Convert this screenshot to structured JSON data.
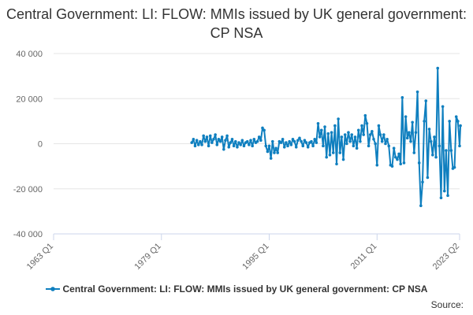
{
  "title": "Central Government: LI: FLOW: MMIs issued by UK general government: CP NSA",
  "source_label": "Source:",
  "chart_data": {
    "type": "line",
    "title": "Central Government: LI: FLOW: MMIs issued by UK general government: CP NSA",
    "xlabel": "",
    "ylabel": "",
    "x_tick_labels": [
      "1963 Q1",
      "1979 Q1",
      "1995 Q1",
      "2011 Q1",
      "2023 Q2"
    ],
    "y_tick_labels": [
      "40 000",
      "20 000",
      "0",
      "-20 000",
      "-40 000"
    ],
    "y_ticks": [
      40000,
      20000,
      0,
      -20000,
      -40000
    ],
    "ylim": [
      -40000,
      40000
    ],
    "grid": true,
    "legend_position": "bottom",
    "series": [
      {
        "name": "Central Government: LI: FLOW: MMIs issued by UK general government: CP NSA",
        "color": "#0f7fbf",
        "points": [
          [
            "1983 Q3",
            500
          ],
          [
            "1983 Q4",
            2000
          ],
          [
            "1984 Q1",
            -1000
          ],
          [
            "1984 Q2",
            1500
          ],
          [
            "1984 Q3",
            -500
          ],
          [
            "1984 Q4",
            1000
          ],
          [
            "1985 Q1",
            -500
          ],
          [
            "1985 Q2",
            3500
          ],
          [
            "1985 Q3",
            1000
          ],
          [
            "1985 Q4",
            3000
          ],
          [
            "1986 Q1",
            -1000
          ],
          [
            "1986 Q2",
            3500
          ],
          [
            "1986 Q3",
            500
          ],
          [
            "1986 Q4",
            2000
          ],
          [
            "1987 Q1",
            4000
          ],
          [
            "1987 Q2",
            -500
          ],
          [
            "1987 Q3",
            2000
          ],
          [
            "1987 Q4",
            1000
          ],
          [
            "1988 Q1",
            3000
          ],
          [
            "1988 Q2",
            -2500
          ],
          [
            "1988 Q3",
            1500
          ],
          [
            "1988 Q4",
            3500
          ],
          [
            "1989 Q1",
            -1500
          ],
          [
            "1989 Q2",
            500
          ],
          [
            "1989 Q3",
            2000
          ],
          [
            "1989 Q4",
            -1000
          ],
          [
            "1990 Q1",
            1000
          ],
          [
            "1990 Q2",
            -1500
          ],
          [
            "1990 Q3",
            500
          ],
          [
            "1990 Q4",
            -500
          ],
          [
            "1991 Q1",
            1500
          ],
          [
            "1991 Q2",
            -1000
          ],
          [
            "1991 Q3",
            500
          ],
          [
            "1991 Q4",
            1000
          ],
          [
            "1992 Q1",
            -500
          ],
          [
            "1992 Q2",
            1500
          ],
          [
            "1992 Q3",
            -1000
          ],
          [
            "1992 Q4",
            2000
          ],
          [
            "1993 Q1",
            500
          ],
          [
            "1993 Q2",
            1000
          ],
          [
            "1993 Q3",
            3000
          ],
          [
            "1993 Q4",
            1500
          ],
          [
            "1994 Q1",
            7000
          ],
          [
            "1994 Q2",
            6000
          ],
          [
            "1994 Q3",
            -1000
          ],
          [
            "1994 Q4",
            -3500
          ],
          [
            "1995 Q1",
            -1000
          ],
          [
            "1995 Q2",
            -6500
          ],
          [
            "1995 Q3",
            1000
          ],
          [
            "1995 Q4",
            -4000
          ],
          [
            "1996 Q1",
            -2000
          ],
          [
            "1996 Q2",
            -4000
          ],
          [
            "1996 Q3",
            1000
          ],
          [
            "1996 Q4",
            500
          ],
          [
            "1997 Q1",
            2000
          ],
          [
            "1997 Q2",
            -1500
          ],
          [
            "1997 Q3",
            500
          ],
          [
            "1997 Q4",
            -1000
          ],
          [
            "1998 Q1",
            1000
          ],
          [
            "1998 Q2",
            -500
          ],
          [
            "1998 Q3",
            2000
          ],
          [
            "1998 Q4",
            1000
          ],
          [
            "1999 Q1",
            -1500
          ],
          [
            "1999 Q2",
            1500
          ],
          [
            "1999 Q3",
            2500
          ],
          [
            "1999 Q4",
            1000
          ],
          [
            "2000 Q1",
            -1000
          ],
          [
            "2000 Q2",
            1500
          ],
          [
            "2000 Q3",
            500
          ],
          [
            "2000 Q4",
            -1500
          ],
          [
            "2001 Q1",
            500
          ],
          [
            "2001 Q2",
            1000
          ],
          [
            "2001 Q3",
            -1000
          ],
          [
            "2001 Q4",
            2000
          ],
          [
            "2002 Q1",
            500
          ],
          [
            "2002 Q2",
            9000
          ],
          [
            "2002 Q3",
            3000
          ],
          [
            "2002 Q4",
            6000
          ],
          [
            "2003 Q1",
            -1000
          ],
          [
            "2003 Q2",
            7500
          ],
          [
            "2003 Q3",
            -6000
          ],
          [
            "2003 Q4",
            4500
          ],
          [
            "2004 Q1",
            -5000
          ],
          [
            "2004 Q2",
            5000
          ],
          [
            "2004 Q3",
            -4000
          ],
          [
            "2004 Q4",
            8000
          ],
          [
            "2005 Q1",
            -9000
          ],
          [
            "2005 Q2",
            11000
          ],
          [
            "2005 Q3",
            -4000
          ],
          [
            "2005 Q4",
            3000
          ],
          [
            "2006 Q1",
            -7000
          ],
          [
            "2006 Q2",
            4000
          ],
          [
            "2006 Q3",
            0
          ],
          [
            "2006 Q4",
            5000
          ],
          [
            "2007 Q1",
            1000
          ],
          [
            "2007 Q2",
            4000
          ],
          [
            "2007 Q3",
            -1000
          ],
          [
            "2007 Q4",
            3000
          ],
          [
            "2008 Q1",
            -2000
          ],
          [
            "2008 Q2",
            6000
          ],
          [
            "2008 Q3",
            1000
          ],
          [
            "2008 Q4",
            8000
          ],
          [
            "2009 Q1",
            4000
          ],
          [
            "2009 Q2",
            12500
          ],
          [
            "2009 Q3",
            9000
          ],
          [
            "2009 Q4",
            -1000
          ],
          [
            "2010 Q1",
            4000
          ],
          [
            "2010 Q2",
            5500
          ],
          [
            "2010 Q3",
            2000
          ],
          [
            "2010 Q4",
            0
          ],
          [
            "2011 Q1",
            -9500
          ],
          [
            "2011 Q2",
            8000
          ],
          [
            "2011 Q3",
            4000
          ],
          [
            "2011 Q4",
            1000
          ],
          [
            "2012 Q1",
            4000
          ],
          [
            "2012 Q2",
            0
          ],
          [
            "2012 Q3",
            2000
          ],
          [
            "2012 Q4",
            -1000
          ],
          [
            "2013 Q1",
            -9500
          ],
          [
            "2013 Q2",
            -10000
          ],
          [
            "2013 Q3",
            -2000
          ],
          [
            "2013 Q4",
            -6000
          ],
          [
            "2014 Q1",
            -7000
          ],
          [
            "2014 Q2",
            -4500
          ],
          [
            "2014 Q3",
            -9000
          ],
          [
            "2014 Q4",
            20500
          ],
          [
            "2015 Q1",
            -8500
          ],
          [
            "2015 Q2",
            12000
          ],
          [
            "2015 Q3",
            2500
          ],
          [
            "2015 Q4",
            5000
          ],
          [
            "2016 Q1",
            1000
          ],
          [
            "2016 Q2",
            9500
          ],
          [
            "2016 Q3",
            -4000
          ],
          [
            "2016 Q4",
            5000
          ],
          [
            "2017 Q1",
            23000
          ],
          [
            "2017 Q2",
            -8500
          ],
          [
            "2017 Q3",
            -27500
          ],
          [
            "2017 Q4",
            -17000
          ],
          [
            "2018 Q1",
            10000
          ],
          [
            "2018 Q2",
            19000
          ],
          [
            "2018 Q3",
            -15000
          ],
          [
            "2018 Q4",
            6500
          ],
          [
            "2019 Q1",
            1000
          ],
          [
            "2019 Q2",
            -5000
          ],
          [
            "2019 Q3",
            3000
          ],
          [
            "2019 Q4",
            -6000
          ],
          [
            "2020 Q1",
            33500
          ],
          [
            "2020 Q2",
            -1000
          ],
          [
            "2020 Q3",
            -24000
          ],
          [
            "2020 Q4",
            16500
          ],
          [
            "2021 Q1",
            -21000
          ],
          [
            "2021 Q2",
            -3000
          ],
          [
            "2021 Q3",
            -23000
          ],
          [
            "2021 Q4",
            10000
          ],
          [
            "2022 Q1",
            -3000
          ],
          [
            "2022 Q2",
            -11000
          ],
          [
            "2022 Q3",
            -10500
          ],
          [
            "2022 Q4",
            12000
          ],
          [
            "2023 Q1",
            10000
          ],
          [
            "2023 Q2",
            -1000
          ],
          [
            "2023 Q2",
            8000
          ]
        ]
      }
    ]
  }
}
